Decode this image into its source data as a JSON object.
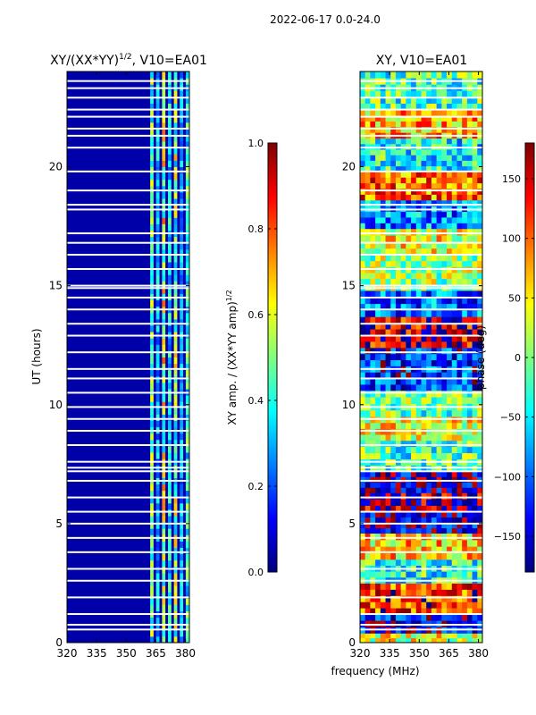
{
  "figure": {
    "suptitle": "2022-06-17 0.0-24.0",
    "xlabel": "frequency (MHz)"
  },
  "colors": {
    "jet": [
      "#00007f",
      "#0000ff",
      "#007fff",
      "#00ffff",
      "#7fff7f",
      "#ffff00",
      "#ff7f00",
      "#ff0000",
      "#7f0000"
    ],
    "frame": "#000000",
    "background": "#ffffff"
  },
  "chart_data": [
    {
      "type": "heatmap",
      "title": "XY/(XX*YY)",
      "title_exponent": "1/2",
      "title_suffix": ", V10=EA01",
      "xlabel": "frequency (MHz)",
      "ylabel": "UT (hours)",
      "xlim": [
        320,
        382
      ],
      "ylim": [
        0,
        24
      ],
      "xticks": [
        320,
        335,
        350,
        365,
        380
      ],
      "yticks": [
        0,
        5,
        10,
        15,
        20
      ],
      "colorbar": {
        "label": "XY amp. / (XX*YY amp)",
        "label_exponent": "1/2",
        "range": [
          0.0,
          1.0
        ],
        "ticks": [
          0.0,
          0.2,
          0.4,
          0.6,
          0.8,
          1.0
        ],
        "tick_labels": [
          "0.0",
          "0.2",
          "0.4",
          "0.6",
          "0.8",
          "1.0"
        ]
      },
      "description": "Low amplitude (~0.05) below 362 MHz; channels 362-382 MHz show vertical bands of elevated amplitude (0.3-0.6)",
      "band_frequencies_MHz": [
        363,
        366,
        369,
        372,
        375,
        378,
        381
      ],
      "band_amplitudes": [
        0.45,
        0.3,
        0.55,
        0.35,
        0.5,
        0.3,
        0.4
      ],
      "gap_hours": [
        0.55,
        0.75,
        1.2,
        1.9,
        2.6,
        3.1,
        3.8,
        4.4,
        5.0,
        5.5,
        6.1,
        6.8,
        7.2,
        7.35,
        7.6,
        8.3,
        8.9,
        9.4,
        9.9,
        10.5,
        11.1,
        11.5,
        12.2,
        12.9,
        13.4,
        14.0,
        14.5,
        14.9,
        15.0,
        15.7,
        16.3,
        16.8,
        17.2,
        18.2,
        18.4,
        19.0,
        19.8,
        20.8,
        21.3,
        21.6,
        22.1,
        22.4,
        22.9,
        23.3,
        23.6
      ]
    },
    {
      "type": "heatmap",
      "title": "XY, V10=EA01",
      "xlabel": "frequency (MHz)",
      "ylabel": "",
      "xlim": [
        320,
        382
      ],
      "ylim": [
        0,
        24
      ],
      "xticks": [
        320,
        335,
        350,
        365,
        380
      ],
      "yticks": [
        0,
        5,
        10,
        15,
        20
      ],
      "colorbar": {
        "label": "phase (deg)",
        "range": [
          -180,
          180
        ],
        "ticks": [
          -150,
          -100,
          -50,
          0,
          50,
          100,
          150
        ],
        "tick_labels": [
          "−150",
          "−100",
          "−50",
          "0",
          "50",
          "100",
          "150"
        ]
      },
      "description": "Phase varies widely across time and frequency; blocks of red/dark red around 4-8 h and 13-14 h, mixed cyan/yellow elsewhere",
      "time_blocks": [
        {
          "start": 0.0,
          "end": 0.4,
          "phase": 30
        },
        {
          "start": 0.4,
          "end": 1.2,
          "phase": -140
        },
        {
          "start": 1.2,
          "end": 2.5,
          "phase": 120
        },
        {
          "start": 2.5,
          "end": 3.5,
          "phase": -30
        },
        {
          "start": 3.5,
          "end": 4.6,
          "phase": 60
        },
        {
          "start": 4.6,
          "end": 5.5,
          "phase": -150
        },
        {
          "start": 5.5,
          "end": 6.3,
          "phase": 170
        },
        {
          "start": 6.3,
          "end": 7.2,
          "phase": -160
        },
        {
          "start": 7.2,
          "end": 8.5,
          "phase": -20
        },
        {
          "start": 8.5,
          "end": 9.5,
          "phase": 40
        },
        {
          "start": 9.5,
          "end": 10.6,
          "phase": -10
        },
        {
          "start": 10.6,
          "end": 12.4,
          "phase": -120
        },
        {
          "start": 12.4,
          "end": 13.7,
          "phase": 150
        },
        {
          "start": 13.7,
          "end": 14.8,
          "phase": -100
        },
        {
          "start": 14.8,
          "end": 16.3,
          "phase": 10
        },
        {
          "start": 16.3,
          "end": 17.4,
          "phase": 40
        },
        {
          "start": 17.4,
          "end": 18.6,
          "phase": -90
        },
        {
          "start": 18.6,
          "end": 19.8,
          "phase": 100
        },
        {
          "start": 19.8,
          "end": 21.2,
          "phase": -40
        },
        {
          "start": 21.2,
          "end": 22.4,
          "phase": 70
        },
        {
          "start": 22.4,
          "end": 24.0,
          "phase": -20
        }
      ],
      "gap_hours": [
        0.55,
        0.75,
        1.2,
        1.9,
        2.6,
        3.1,
        3.8,
        4.4,
        5.0,
        5.5,
        6.1,
        6.8,
        7.2,
        7.35,
        7.6,
        8.3,
        8.9,
        9.4,
        9.9,
        10.5,
        11.1,
        11.5,
        12.2,
        12.9,
        13.4,
        14.0,
        14.5,
        14.9,
        15.0,
        15.7,
        16.3,
        16.8,
        17.2,
        18.2,
        18.4,
        19.0,
        19.8,
        20.8,
        21.3,
        21.6,
        22.1,
        22.4,
        22.9,
        23.3,
        23.6
      ]
    }
  ]
}
